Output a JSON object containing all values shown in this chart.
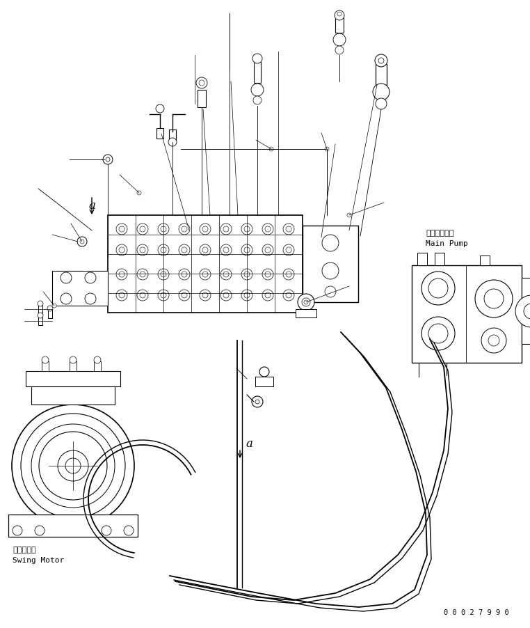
{
  "bg_color": "#ffffff",
  "line_color": "#000000",
  "fig_width": 7.62,
  "fig_height": 9.03,
  "dpi": 100,
  "part_number": "0 0 0 2 7 9 9 0",
  "label_main_pump_jp": "メインポンプ",
  "label_main_pump_en": "Main Pump",
  "label_swing_motor_jp": "旋回モータ",
  "label_swing_motor_en": "Swing Motor",
  "label_a": "a"
}
